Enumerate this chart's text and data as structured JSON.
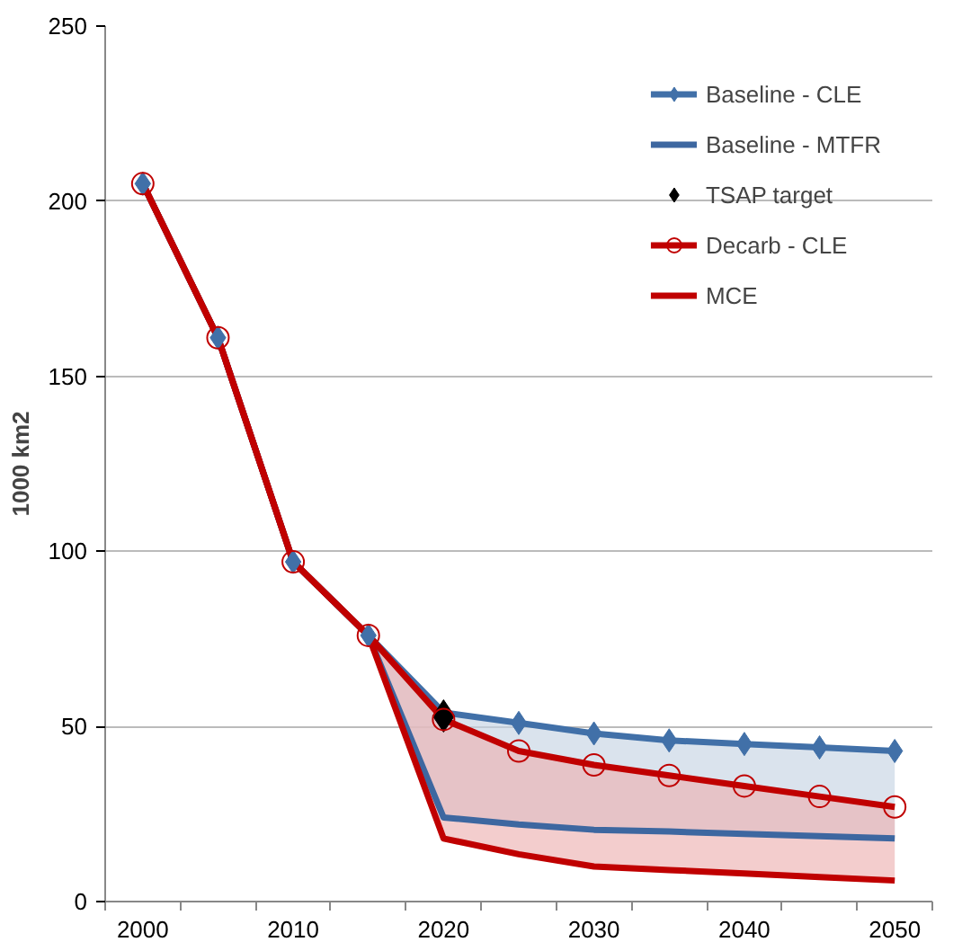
{
  "chart_data": {
    "type": "line",
    "ylabel": "1000 km2",
    "categories": [
      "2000",
      null,
      "2010",
      null,
      "2020",
      null,
      "2030",
      null,
      "2040",
      null,
      "2050"
    ],
    "ylim": [
      0,
      250
    ],
    "yticks": [
      0,
      50,
      100,
      150,
      200,
      250
    ],
    "grid": "y",
    "legend": "top right",
    "series": [
      {
        "name": "Baseline - CLE",
        "color": "#4170a8",
        "marker": "diamond",
        "values": [
          205,
          161,
          97,
          76,
          54,
          51,
          48,
          46,
          45,
          44,
          43
        ],
        "lower": [
          null,
          null,
          null,
          76,
          24,
          22,
          20.5,
          20,
          19.3,
          18.7,
          18
        ],
        "upper": [
          null,
          null,
          null,
          76,
          54,
          51,
          48,
          46,
          45,
          44,
          43
        ]
      },
      {
        "name": "Baseline - MTFR",
        "color": "#3d67a0",
        "marker": "none",
        "values": [
          205,
          161,
          97,
          76,
          24,
          22,
          20.5,
          20,
          19.3,
          18.7,
          18
        ]
      },
      {
        "name": "TSAP target",
        "type": "scatter",
        "color": "#000000",
        "marker": "diamond",
        "values": [
          null,
          null,
          null,
          null,
          53,
          null,
          null,
          null,
          null,
          null,
          null
        ]
      },
      {
        "name": "Decarb - CLE",
        "color": "#c00000",
        "marker": "circle",
        "values": [
          205,
          161,
          97,
          76,
          52,
          43,
          39,
          36,
          33,
          30,
          27
        ],
        "lower": [
          null,
          null,
          null,
          76,
          18,
          13.5,
          10,
          9,
          8,
          7,
          6
        ],
        "upper": [
          null,
          null,
          null,
          76,
          52,
          43,
          39,
          36,
          33,
          30,
          27
        ]
      },
      {
        "name": "MCE",
        "color": "#c00000",
        "marker": "none",
        "values": [
          205,
          161,
          97,
          76,
          18,
          13.5,
          10,
          9,
          8,
          7,
          6
        ]
      }
    ]
  }
}
